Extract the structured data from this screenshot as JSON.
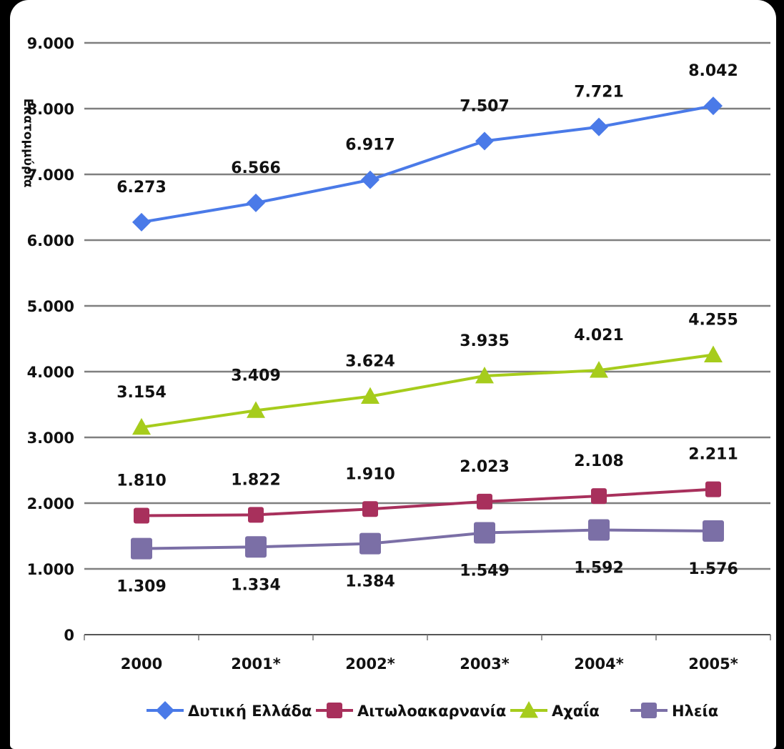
{
  "chart_data": {
    "type": "line",
    "categories": [
      "2000",
      "2001*",
      "2002*",
      "2003*",
      "2004*",
      "2005*"
    ],
    "ylabel": "Εκατομμύρια",
    "ylim": [
      0,
      9000
    ],
    "yticks": [
      0,
      1000,
      2000,
      3000,
      4000,
      5000,
      6000,
      7000,
      8000,
      9000
    ],
    "ytick_labels": [
      "0",
      "1.000",
      "2.000",
      "3.000",
      "4.000",
      "5.000",
      "6.000",
      "7.000",
      "8.000",
      "9.000"
    ],
    "grid": true,
    "legend_position": "bottom",
    "series": [
      {
        "name": "Δυτική Ελλάδα",
        "color": "#4a7ae8",
        "marker": "diamond",
        "values": [
          6273,
          6566,
          6917,
          7507,
          7721,
          8042
        ],
        "labels": [
          "6.273",
          "6.566",
          "6.917",
          "7.507",
          "7.721",
          "8.042"
        ],
        "label_position": "above"
      },
      {
        "name": "Αιτωλοακαρνανία",
        "color": "#a8305c",
        "marker": "square",
        "values": [
          1810,
          1822,
          1910,
          2023,
          2108,
          2211
        ],
        "labels": [
          "1.810",
          "1.822",
          "1.910",
          "2.023",
          "2.108",
          "2.211"
        ],
        "label_position": "above"
      },
      {
        "name": "Αχαΐα",
        "color": "#a6cc1c",
        "marker": "triangle",
        "values": [
          3154,
          3409,
          3624,
          3935,
          4021,
          4255
        ],
        "labels": [
          "3.154",
          "3.409",
          "3.624",
          "3.935",
          "4.021",
          "4.255"
        ],
        "label_position": "above"
      },
      {
        "name": "Ηλεία",
        "color": "#7b6fa6",
        "marker": "square-large",
        "values": [
          1309,
          1334,
          1384,
          1549,
          1592,
          1576
        ],
        "labels": [
          "1.309",
          "1.334",
          "1.384",
          "1.549",
          "1.592",
          "1.576"
        ],
        "label_position": "below"
      }
    ],
    "legend": [
      "Δυτική Ελλάδα",
      "Αιτωλοακαρνανία",
      "Αχαΐα",
      "Ηλεία"
    ]
  }
}
